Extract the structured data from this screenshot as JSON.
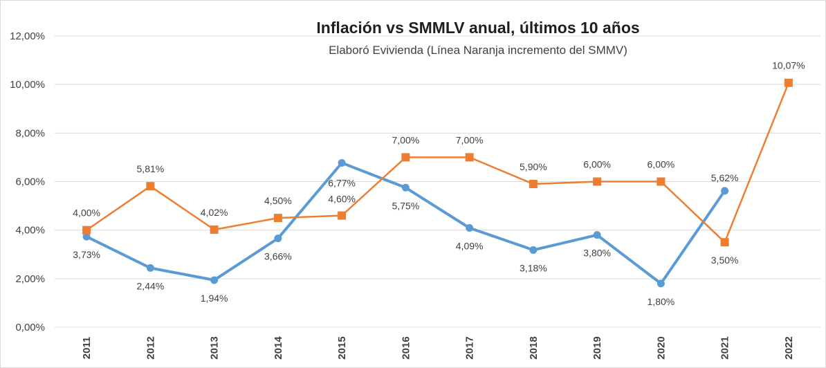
{
  "chart_data": {
    "type": "line",
    "title": "Inflación vs SMMLV  anual, últimos 10 años",
    "subtitle": "Elaboró Evivienda  (Línea Naranja incremento del SMMV)",
    "categories": [
      "2011",
      "2012",
      "2013",
      "2014",
      "2015",
      "2016",
      "2017",
      "2018",
      "2019",
      "2020",
      "2021",
      "2022"
    ],
    "ylim": [
      0,
      12
    ],
    "yticks": [
      0,
      2,
      4,
      6,
      8,
      10,
      12
    ],
    "ytick_labels": [
      "0,00%",
      "2,00%",
      "4,00%",
      "6,00%",
      "8,00%",
      "10,00%",
      "12,00%"
    ],
    "grid": true,
    "series": [
      {
        "color": "#5b9bd5",
        "marker": "circle",
        "values": [
          3.73,
          2.44,
          1.94,
          3.66,
          6.77,
          5.75,
          4.09,
          3.18,
          3.8,
          1.8,
          5.62,
          null
        ],
        "labels": [
          "3,73%",
          "2,44%",
          "1,94%",
          "3,66%",
          "6,77%",
          "5,75%",
          "4,09%",
          "3,18%",
          "3,80%",
          "1,80%",
          "5,62%",
          null
        ]
      },
      {
        "color": "#ed7d31",
        "marker": "square",
        "values": [
          4.0,
          5.81,
          4.02,
          4.5,
          4.6,
          7.0,
          7.0,
          5.9,
          6.0,
          6.0,
          3.5,
          10.07
        ],
        "labels": [
          "4,00%",
          "5,81%",
          "4,02%",
          "4,50%",
          "4,60%",
          "7,00%",
          "7,00%",
          "5,90%",
          "6,00%",
          "6,00%",
          "3,50%",
          "10,07%"
        ]
      }
    ]
  }
}
